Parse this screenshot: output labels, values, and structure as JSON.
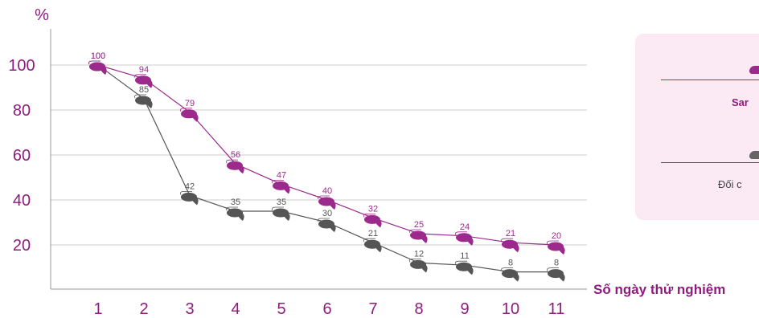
{
  "chart_data": {
    "type": "line",
    "y_unit": "%",
    "xlabel": "Số ngày thử nghiệm",
    "categories": [
      "1",
      "2",
      "3",
      "4",
      "5",
      "6",
      "7",
      "8",
      "9",
      "10",
      "11"
    ],
    "ylim": [
      0,
      112
    ],
    "yticks": [
      20,
      40,
      60,
      80,
      100
    ],
    "grid": true,
    "legend_position": "right",
    "series": [
      {
        "name": "Sar",
        "color": "#9c2a8c",
        "values": [
          100,
          94,
          79,
          56,
          47,
          40,
          32,
          25,
          24,
          21,
          20
        ]
      },
      {
        "name": "Đối c",
        "color": "#555555",
        "values": [
          100,
          85,
          42,
          35,
          35,
          30,
          21,
          12,
          11,
          8,
          8
        ]
      }
    ]
  }
}
